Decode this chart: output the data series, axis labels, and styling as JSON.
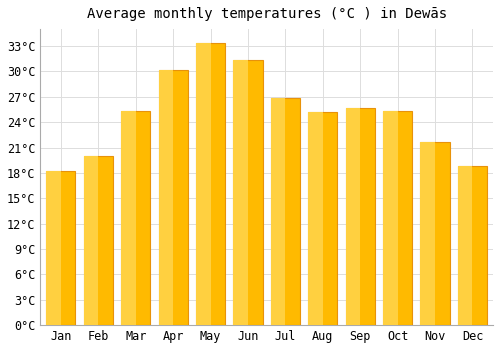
{
  "months": [
    "Jan",
    "Feb",
    "Mar",
    "Apr",
    "May",
    "Jun",
    "Jul",
    "Aug",
    "Sep",
    "Oct",
    "Nov",
    "Dec"
  ],
  "temperatures": [
    18.2,
    20.0,
    25.3,
    30.2,
    33.3,
    31.3,
    26.8,
    25.2,
    25.7,
    25.3,
    21.7,
    18.8
  ],
  "bar_color_edge": "#E8920A",
  "bar_color_face": "#FFBA00",
  "bar_color_center": "#FFD040",
  "title": "Average monthly temperatures (°C ) in Dewās",
  "ylim": [
    0,
    35
  ],
  "yticks": [
    0,
    3,
    6,
    9,
    12,
    15,
    18,
    21,
    24,
    27,
    30,
    33
  ],
  "ytick_labels": [
    "0°C",
    "3°C",
    "6°C",
    "9°C",
    "12°C",
    "15°C",
    "18°C",
    "21°C",
    "24°C",
    "27°C",
    "30°C",
    "33°C"
  ],
  "background_color": "#FFFFFF",
  "grid_color": "#DDDDDD",
  "title_fontsize": 10,
  "tick_fontsize": 8.5,
  "font_family": "monospace"
}
